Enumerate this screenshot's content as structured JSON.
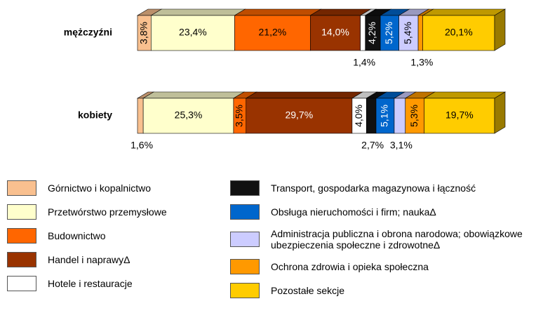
{
  "chart_data": {
    "type": "stacked_bar_3d",
    "categories": [
      "mężczyźni",
      "kobiety"
    ],
    "series": [
      {
        "name": "Górnictwo i kopalnictwo",
        "color": "#f9c08f",
        "values": [
          3.8,
          1.6
        ],
        "value_labels": [
          "3,8%",
          "1,6%"
        ]
      },
      {
        "name": "Przetwórstwo przemysłowe",
        "color": "#ffffcc",
        "values": [
          23.4,
          25.3
        ],
        "value_labels": [
          "23,4%",
          "25,3%"
        ]
      },
      {
        "name": "Budownictwo",
        "color": "#ff6600",
        "values": [
          21.2,
          3.5
        ],
        "value_labels": [
          "21,2%",
          "3,5%"
        ]
      },
      {
        "name": "Handel i naprawyΔ",
        "color": "#993300",
        "values": [
          14.0,
          29.7
        ],
        "value_labels": [
          "14,0%",
          "29,7%"
        ]
      },
      {
        "name": "Hotele i restauracje",
        "color": "#ffffff",
        "values": [
          1.4,
          4.0
        ],
        "value_labels": [
          "1,4%",
          "4,0%"
        ]
      },
      {
        "name": "Transport, gospodarka magazynowa i łączność",
        "color": "#111111",
        "values": [
          4.2,
          2.7
        ],
        "value_labels": [
          "4,2%",
          "2,7%"
        ]
      },
      {
        "name": "Obsługa nieruchomości i firm; naukaΔ",
        "color": "#0066cc",
        "values": [
          5.2,
          5.1
        ],
        "value_labels": [
          "5,2%",
          "5,1%"
        ]
      },
      {
        "name": "Administracja publiczna i obrona narodowa; obowiązkowe ubezpieczenia społeczne i zdrowotneΔ",
        "color": "#ccccff",
        "values": [
          5.4,
          3.1
        ],
        "value_labels": [
          "5,4%",
          "3,1%"
        ]
      },
      {
        "name": "Ochrona zdrowia i opieka społeczna",
        "color": "#ff9900",
        "values": [
          1.3,
          5.3
        ],
        "value_labels": [
          "1,3%",
          "5,3%"
        ]
      },
      {
        "name": "Pozostałe sekcje",
        "color": "#ffcc00",
        "values": [
          20.1,
          19.7
        ],
        "value_labels": [
          "20,1%",
          "19,7%"
        ]
      }
    ],
    "xlim": [
      0,
      100
    ]
  }
}
